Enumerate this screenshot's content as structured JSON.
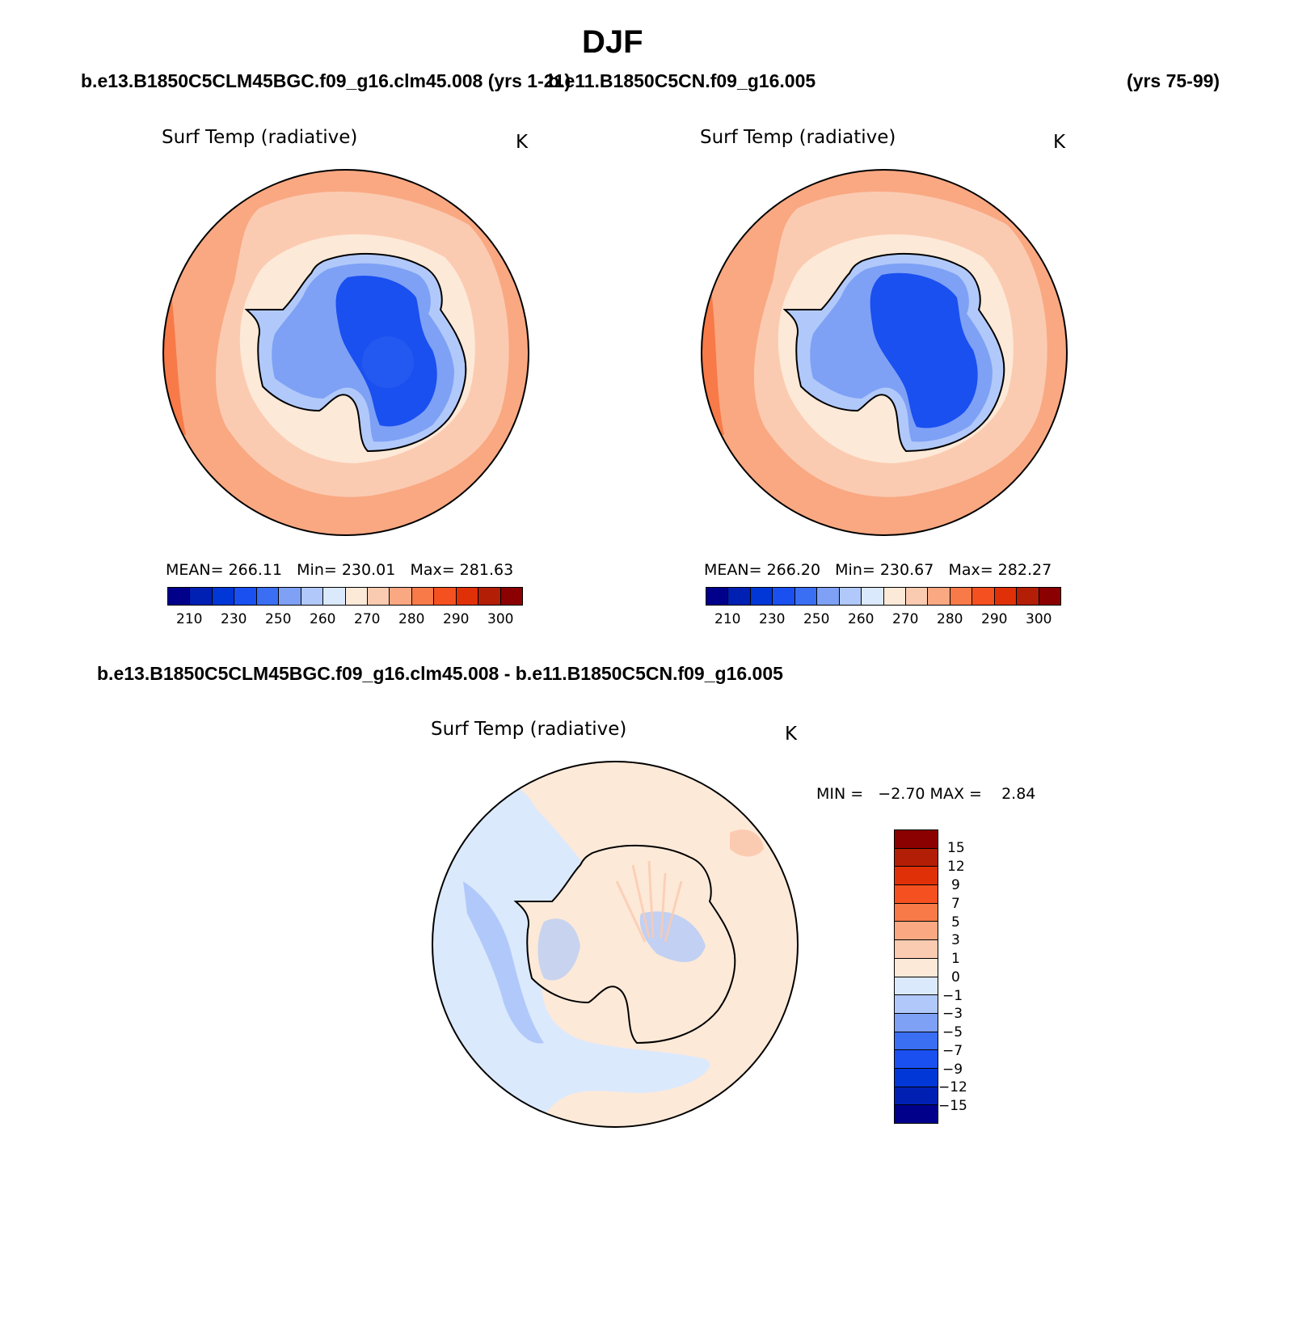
{
  "header": {
    "season": "DJF",
    "case_left": "b.e13.B1850C5CLM45BGC.f09_g16.clm45.008 (yrs 1-21)",
    "case_right": "b.e11.B1850C5CN.f09_g16.005",
    "case_right_years": "(yrs 75-99)",
    "diff_title": "b.e13.B1850C5CLM45BGC.f09_g16.clm45.008 - b.e11.B1850C5CN.f09_g16.005"
  },
  "panels": {
    "left": {
      "variable": "Surf Temp (radiative)",
      "units": "K",
      "stats": "MEAN= 266.11   Min= 230.01   Max= 281.63",
      "tick_labels": [
        "210",
        "230",
        "250",
        "260",
        "270",
        "280",
        "290",
        "300"
      ]
    },
    "right": {
      "variable": "Surf Temp (radiative)",
      "units": "K",
      "stats": "MEAN= 266.20   Min= 230.67   Max= 282.27",
      "tick_labels": [
        "210",
        "230",
        "250",
        "260",
        "270",
        "280",
        "290",
        "300"
      ]
    },
    "diff": {
      "variable": "Surf Temp (radiative)",
      "units": "K",
      "stats": "MIN =   −2.70 MAX =    2.84",
      "tick_labels": [
        "15",
        "12",
        "9",
        "7",
        "5",
        "3",
        "1",
        "0",
        "−1",
        "−3",
        "−5",
        "−7",
        "−9",
        "−12",
        "−15"
      ]
    }
  },
  "colors": {
    "abs_scale": [
      "#00008b",
      "#0020b4",
      "#0037d6",
      "#1a4ff0",
      "#3a6ef3",
      "#7ea1f5",
      "#b1c9fa",
      "#dbe9fd",
      "#fde9d8",
      "#fbcbb1",
      "#f9a882",
      "#f77a48",
      "#f5501f",
      "#e03008",
      "#b31e06",
      "#8b0000"
    ],
    "diff_scale": [
      "#00008b",
      "#0020b4",
      "#0037d6",
      "#1a4ff0",
      "#3a6ef3",
      "#7ea1f5",
      "#b1c9fa",
      "#dbe9fd",
      "#fde9d8",
      "#fbcbb1",
      "#f9a882",
      "#f77a48",
      "#f5501f",
      "#e03008",
      "#b31e06",
      "#8b0000"
    ],
    "ocean_outer": "#f9a882",
    "ocean_mid": "#fbcbb1",
    "ocean_inner": "#fde9d8",
    "ice_edge": "#b1c9fa",
    "coast": "#7ea1f5",
    "plateau": "#3a6ef3",
    "plateau_core": "#1a4ff0",
    "diff_ocean_warm": "#fde9d8",
    "diff_ocean_cool": "#dbe9fd",
    "diff_cool2": "#b1c9fa"
  }
}
